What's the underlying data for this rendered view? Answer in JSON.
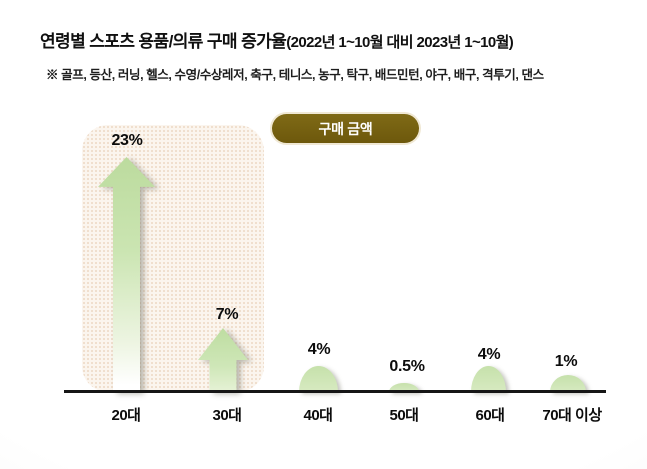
{
  "header": {
    "title_main": "연령별 스포츠 용품/의류 구매 증가율",
    "title_period": "(2022년 1~10월 대비 2023년 1~10월)",
    "subtitle": "※ 골프, 등산, 러닝, 헬스, 수영/수상레저, 축구, 테니스, 농구, 탁구, 배드민턴, 야구, 배구, 격투기, 댄스"
  },
  "badge": {
    "label": "구매 금액"
  },
  "chart_data": {
    "type": "bar",
    "title": "연령별 스포츠 용품/의류 구매 증가율(2022년 1~10월 대비 2023년 1~10월)",
    "metric_label": "구매 금액",
    "categories": [
      "20대",
      "30대",
      "40대",
      "50대",
      "60대",
      "70대 이상"
    ],
    "values": [
      23,
      7,
      4,
      0.5,
      4,
      1
    ],
    "value_labels": [
      "23%",
      "7%",
      "4%",
      "0.5%",
      "4%",
      "1%"
    ],
    "unit": "%",
    "xlabel": "",
    "ylabel": "",
    "ylim": [
      0,
      25
    ],
    "grid": false,
    "highlighted_categories": [
      "20대",
      "30대"
    ],
    "shape_styles": [
      "arrow-up",
      "arrow-up",
      "dome",
      "dome",
      "dome",
      "dome"
    ]
  },
  "colors": {
    "arrow_green": "#c8e2ae",
    "highlight_region_bg": "#fbf5ee",
    "highlight_region_dots": "#efddcb",
    "badge_bg": "#75600f",
    "badge_ring": "#f0e8d4",
    "badge_text": "#ffffff",
    "axis": "#161616",
    "text": "#0c0c0c",
    "page_bg_edge": "#e9e9e7"
  }
}
